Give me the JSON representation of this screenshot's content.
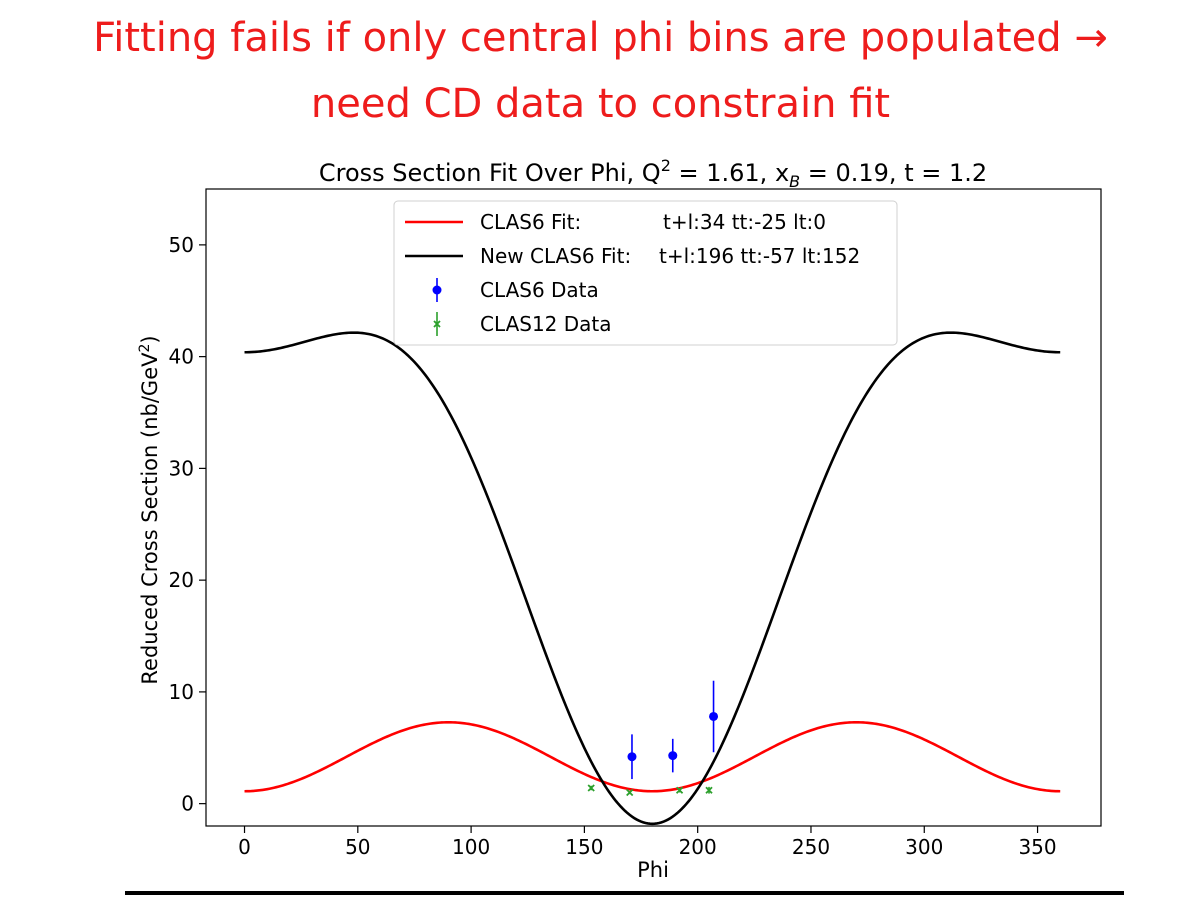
{
  "slide": {
    "title_line1": "Fitting fails if only central phi bins are populated →",
    "title_line2": "need CD data to constrain fit"
  },
  "chart_data": {
    "type": "line",
    "title": "Cross Section Fit Over Phi, Q² = 1.61, xʙ = 0.19, t = 1.2",
    "title_parts": {
      "prefix": "Cross Section Fit Over Phi, Q",
      "q_sup": "2",
      "mid": " = 1.61, x",
      "x_sub": "B",
      "suffix": " = 0.19, t = 1.2"
    },
    "xlabel": "Phi",
    "ylabel": "Reduced Cross Section (nb/GeV²)",
    "ylabel_parts": {
      "prefix": "Reduced Cross Section (nb/GeV",
      "sup": "2",
      "suffix": ")"
    },
    "xlim": [
      -17,
      378
    ],
    "ylim": [
      -2,
      55
    ],
    "xticks": [
      0,
      50,
      100,
      150,
      200,
      250,
      300,
      350
    ],
    "yticks": [
      0,
      10,
      20,
      30,
      40,
      50
    ],
    "grid": false,
    "legend_position": "top-center",
    "series": [
      {
        "name": "CLAS6 Fit:",
        "params": "t+l:34 tt:-25 lt:0",
        "kind": "curve",
        "color": "#ff0000",
        "model": {
          "A": 34,
          "tt": -25,
          "lt": 0,
          "scale": 0.1234
        }
      },
      {
        "name": "New CLAS6 Fit:",
        "params": "t+l:196 tt:-57 lt:152",
        "kind": "curve",
        "color": "#000000",
        "model": {
          "A": 196,
          "tt": -57,
          "lt": 152,
          "scale": 0.1388
        }
      },
      {
        "name": "CLAS6 Data",
        "kind": "errorbar",
        "marker": "circle",
        "color": "#0000ff",
        "points": [
          {
            "x": 171,
            "y": 4.2,
            "err": 2.0
          },
          {
            "x": 189,
            "y": 4.3,
            "err": 1.5
          },
          {
            "x": 207,
            "y": 7.8,
            "err": 3.2
          }
        ]
      },
      {
        "name": "CLAS12 Data",
        "kind": "errorbar",
        "marker": "x",
        "color": "#2ca02c",
        "points": [
          {
            "x": 153,
            "y": 1.4,
            "err": 0.2
          },
          {
            "x": 170,
            "y": 1.0,
            "err": 0.15
          },
          {
            "x": 192,
            "y": 1.2,
            "err": 0.2
          },
          {
            "x": 205,
            "y": 1.2,
            "err": 0.3
          }
        ]
      }
    ]
  }
}
